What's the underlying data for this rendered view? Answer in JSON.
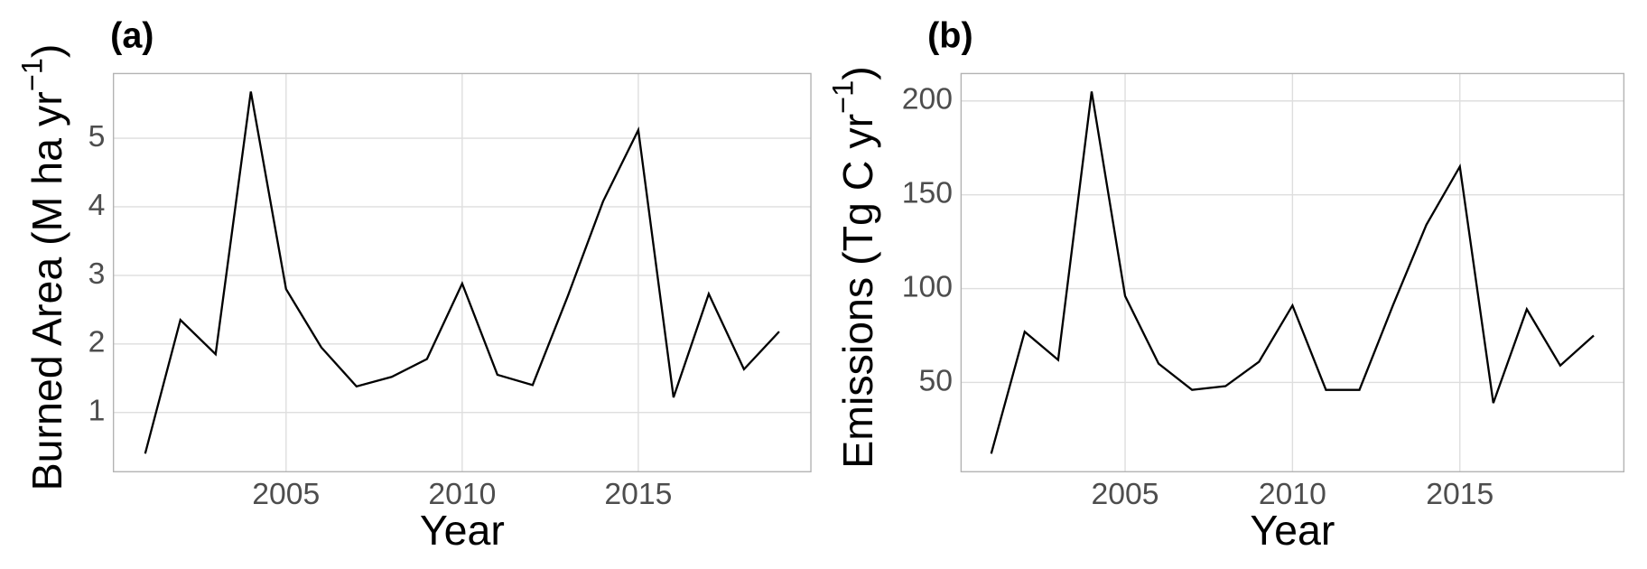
{
  "chart_data": [
    {
      "type": "line",
      "panel_label": "(a)",
      "xlabel": "Year",
      "ylabel": [
        "Burned Area (M ha yr",
        "−1",
        ")"
      ],
      "x": [
        2001,
        2002,
        2003,
        2004,
        2005,
        2006,
        2007,
        2008,
        2009,
        2010,
        2011,
        2012,
        2013,
        2014,
        2015,
        2016,
        2017,
        2018,
        2019
      ],
      "series": [
        {
          "color": "#000000",
          "values": [
            0.4,
            2.35,
            1.85,
            5.68,
            2.8,
            1.95,
            1.38,
            1.52,
            1.78,
            2.88,
            1.55,
            1.4,
            2.7,
            4.08,
            5.12,
            1.22,
            2.73,
            1.63,
            2.18
          ]
        }
      ],
      "xlim": [
        2000.1,
        2019.9
      ],
      "xticks": [
        2005,
        2010,
        2015
      ],
      "ylim": [
        0.136,
        5.944
      ],
      "yticks": [
        1,
        2,
        3,
        4,
        5
      ],
      "grid": true
    },
    {
      "type": "line",
      "panel_label": "(b)",
      "xlabel": "Year",
      "ylabel": [
        "Emissions (Tg C yr",
        "−1",
        ")"
      ],
      "x": [
        2001,
        2002,
        2003,
        2004,
        2005,
        2006,
        2007,
        2008,
        2009,
        2010,
        2011,
        2012,
        2013,
        2014,
        2015,
        2016,
        2017,
        2018,
        2019
      ],
      "series": [
        {
          "color": "#000000",
          "values": [
            12,
            77,
            62,
            205,
            96,
            60,
            46,
            48,
            61,
            91,
            46,
            46,
            91,
            134,
            165,
            39,
            89,
            59,
            75
          ]
        }
      ],
      "xlim": [
        2000.1,
        2019.9
      ],
      "xticks": [
        2005,
        2010,
        2015
      ],
      "ylim": [
        2.4,
        214.6
      ],
      "yticks": [
        50,
        100,
        150,
        200
      ],
      "grid": true
    }
  ]
}
